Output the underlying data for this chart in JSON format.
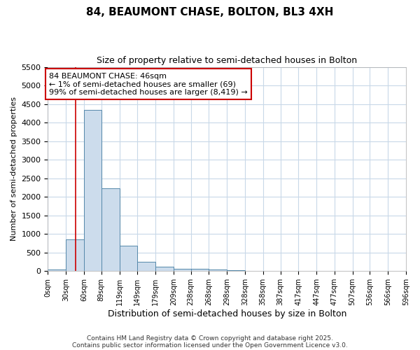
{
  "title1": "84, BEAUMONT CHASE, BOLTON, BL3 4XH",
  "title2": "Size of property relative to semi-detached houses in Bolton",
  "xlabel": "Distribution of semi-detached houses by size in Bolton",
  "ylabel": "Number of semi-detached properties",
  "bar_color": "#ccdcec",
  "bar_edge_color": "#5588aa",
  "background_color": "#ffffff",
  "grid_color": "#c8d8e8",
  "bin_edges": [
    0,
    30,
    60,
    89,
    119,
    149,
    179,
    209,
    238,
    268,
    298,
    328,
    358,
    387,
    417,
    447,
    477,
    507,
    536,
    566,
    596
  ],
  "bin_labels": [
    "0sqm",
    "30sqm",
    "60sqm",
    "89sqm",
    "119sqm",
    "149sqm",
    "179sqm",
    "209sqm",
    "238sqm",
    "268sqm",
    "298sqm",
    "328sqm",
    "358sqm",
    "387sqm",
    "417sqm",
    "447sqm",
    "477sqm",
    "507sqm",
    "536sqm",
    "566sqm",
    "596sqm"
  ],
  "bar_heights": [
    50,
    860,
    4340,
    2240,
    680,
    250,
    120,
    70,
    55,
    45,
    25,
    0,
    0,
    0,
    0,
    0,
    0,
    0,
    0,
    0
  ],
  "red_line_x": 46,
  "ylim": [
    0,
    5500
  ],
  "yticks": [
    0,
    500,
    1000,
    1500,
    2000,
    2500,
    3000,
    3500,
    4000,
    4500,
    5000,
    5500
  ],
  "annotation_text": "84 BEAUMONT CHASE: 46sqm\n← 1% of semi-detached houses are smaller (69)\n99% of semi-detached houses are larger (8,419) →",
  "annotation_box_color": "#ffffff",
  "annotation_box_edge": "#cc0000",
  "red_line_color": "#cc0000",
  "footer1": "Contains HM Land Registry data © Crown copyright and database right 2025.",
  "footer2": "Contains public sector information licensed under the Open Government Licence v3.0."
}
